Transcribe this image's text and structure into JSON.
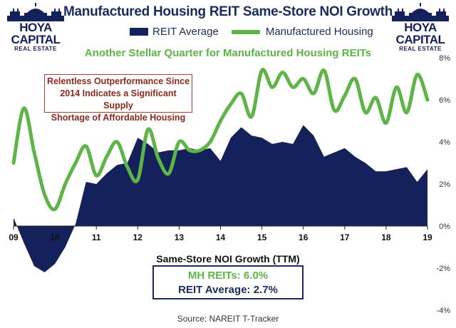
{
  "logo": {
    "line1": "HOYA CAPITAL",
    "line2": "REAL ESTATE"
  },
  "header": {
    "title": "Manufactured Housing REIT Same-Store NOI Growth",
    "subtitle": "Another Stellar Quarter for Manufactured Housing REITs"
  },
  "legend": {
    "area_label": "REIT Average",
    "line_label": "Manufactured Housing"
  },
  "callout": {
    "line1": "Relentless Outperformance Since",
    "line2": "2014 Indicates a Significant Supply",
    "line3": "Shortage of Affordable Housing"
  },
  "summary": {
    "mh": "MH REITs: 6.0%",
    "reit": "REIT Average: 2.7%"
  },
  "source": "Source: NAREIT T-Tracker",
  "colors": {
    "reit": "#14215a",
    "mh": "#5eb446",
    "title": "#1a2c5b"
  },
  "chart_data": {
    "type": "area",
    "xlabel": "Same-Store NOI Growth (TTM)",
    "ylim": [
      -4,
      8
    ],
    "xlim": [
      2009,
      2019
    ],
    "x_ticks": [
      "09",
      "10",
      "11",
      "12",
      "13",
      "14",
      "15",
      "16",
      "17",
      "18",
      "19"
    ],
    "y_ticks": [
      "8%",
      "6%",
      "4%",
      "2%",
      "0%",
      "-2%",
      "-4%"
    ],
    "series": [
      {
        "name": "REIT Average",
        "type": "area",
        "x": [
          2009.0,
          2009.25,
          2009.5,
          2009.75,
          2010.0,
          2010.25,
          2010.5,
          2010.75,
          2011.0,
          2011.25,
          2011.5,
          2011.75,
          2012.0,
          2012.25,
          2012.5,
          2012.75,
          2013.0,
          2013.25,
          2013.5,
          2013.75,
          2014.0,
          2014.25,
          2014.5,
          2014.75,
          2015.0,
          2015.25,
          2015.5,
          2015.75,
          2016.0,
          2016.25,
          2016.5,
          2016.75,
          2017.0,
          2017.25,
          2017.5,
          2017.75,
          2018.0,
          2018.25,
          2018.5,
          2018.75,
          2019.0
        ],
        "y": [
          0.4,
          -0.8,
          -1.9,
          -2.2,
          -1.8,
          -1.0,
          0.1,
          2.1,
          2.0,
          2.5,
          2.9,
          3.0,
          4.2,
          3.9,
          3.5,
          3.6,
          3.6,
          3.7,
          3.6,
          3.7,
          3.1,
          4.2,
          4.7,
          4.3,
          4.2,
          3.9,
          4.0,
          3.9,
          4.8,
          4.3,
          3.3,
          3.5,
          3.7,
          3.3,
          3.0,
          2.6,
          2.6,
          2.7,
          2.8,
          2.1,
          2.7
        ]
      },
      {
        "name": "Manufactured Housing",
        "type": "line",
        "x": [
          2009.0,
          2009.25,
          2009.5,
          2009.75,
          2010.0,
          2010.25,
          2010.5,
          2010.75,
          2011.0,
          2011.25,
          2011.5,
          2011.75,
          2012.0,
          2012.25,
          2012.5,
          2012.75,
          2013.0,
          2013.25,
          2013.5,
          2013.75,
          2014.0,
          2014.25,
          2014.5,
          2014.75,
          2015.0,
          2015.25,
          2015.5,
          2015.75,
          2016.0,
          2016.25,
          2016.5,
          2016.75,
          2017.0,
          2017.25,
          2017.5,
          2017.75,
          2018.0,
          2018.25,
          2018.5,
          2018.75,
          2019.0
        ],
        "y": [
          3.0,
          5.6,
          3.5,
          1.5,
          0.8,
          2.0,
          3.0,
          3.8,
          2.4,
          3.3,
          4.0,
          2.8,
          2.2,
          4.6,
          3.2,
          2.5,
          4.0,
          3.6,
          3.6,
          4.0,
          5.0,
          5.8,
          6.3,
          5.2,
          7.4,
          6.6,
          7.3,
          6.6,
          7.0,
          6.3,
          7.4,
          5.5,
          6.2,
          7.0,
          5.4,
          6.1,
          4.9,
          6.6,
          5.4,
          7.2,
          6.0
        ]
      }
    ]
  }
}
